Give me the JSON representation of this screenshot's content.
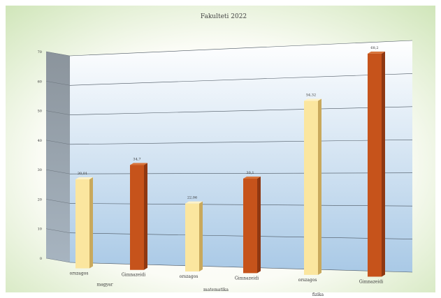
{
  "chart_data": {
    "type": "bar",
    "title": "Fakulteti 2022",
    "ylim": [
      0,
      70
    ],
    "yticks": [
      0,
      10,
      20,
      30,
      40,
      50,
      60,
      70
    ],
    "grid": true,
    "groups": [
      "magyar",
      "matematika",
      "fizika"
    ],
    "bars": [
      {
        "group": "magyar",
        "label": "orszagos",
        "value": 30.01,
        "value_label": "30,01",
        "color": "#fbe69f"
      },
      {
        "group": "magyar",
        "label": "Gimnazeidi",
        "value": 34.7,
        "value_label": "34,7",
        "color": "#c6531b"
      },
      {
        "group": "matematika",
        "label": "orszagos",
        "value": 22.06,
        "value_label": "22,06",
        "color": "#fbe69f"
      },
      {
        "group": "matematika",
        "label": "Gimnazeidi",
        "value": 30.1,
        "value_label": "30,1",
        "color": "#c6531b"
      },
      {
        "group": "fizika",
        "label": "orszagos",
        "value": 54.32,
        "value_label": "54,32",
        "color": "#fbe69f"
      },
      {
        "group": "fizika",
        "label": "Gimnazeidi",
        "value": 68.2,
        "value_label": "68,2",
        "color": "#c6531b"
      }
    ]
  }
}
